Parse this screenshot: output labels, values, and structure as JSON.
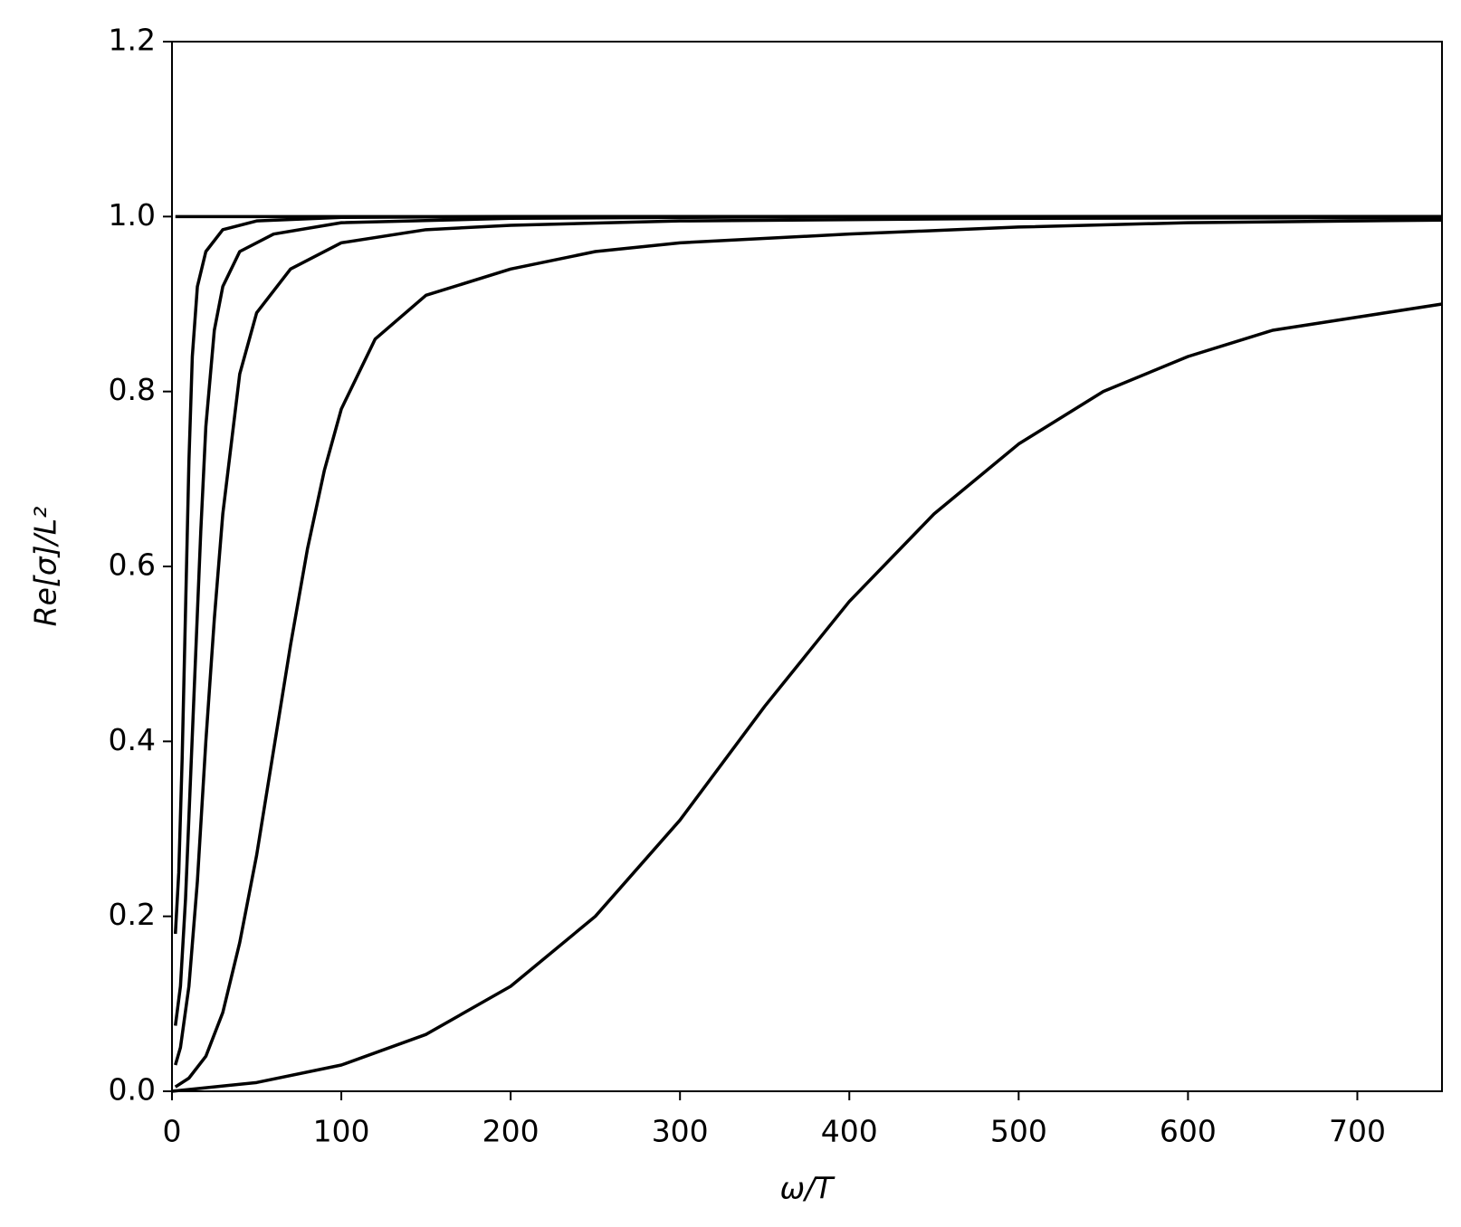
{
  "chart_data": {
    "type": "line",
    "xlabel": "ω/T",
    "ylabel": "Re[σ]/L²",
    "xlim": [
      0,
      750
    ],
    "xticks": [
      0,
      100,
      200,
      300,
      400,
      500,
      600,
      700
    ],
    "ylim": [
      0,
      1.2
    ],
    "yticks": [
      {
        "value": 0,
        "label": "0.0"
      },
      0.2,
      0.4,
      0.6,
      0.8,
      {
        "value": 1,
        "label": "1.0"
      },
      1.2
    ],
    "grid": false,
    "series": [
      {
        "color": "#000000",
        "x": [
          2,
          750
        ],
        "values": [
          1,
          1
        ]
      },
      {
        "color": "#000000",
        "x": [
          2,
          4,
          6,
          8,
          10,
          12,
          15,
          20,
          30,
          50,
          100,
          200,
          400,
          750
        ],
        "values": [
          0.18,
          0.25,
          0.38,
          0.55,
          0.72,
          0.84,
          0.92,
          0.96,
          0.985,
          0.995,
          0.999,
          1,
          1,
          1
        ]
      },
      {
        "color": "#000000",
        "x": [
          2,
          5,
          8,
          11,
          14,
          17,
          20,
          25,
          30,
          40,
          60,
          100,
          200,
          400,
          750
        ],
        "values": [
          0.075,
          0.12,
          0.22,
          0.36,
          0.5,
          0.64,
          0.76,
          0.87,
          0.92,
          0.96,
          0.98,
          0.993,
          0.998,
          1,
          1
        ]
      },
      {
        "color": "#000000",
        "x": [
          2,
          5,
          10,
          15,
          20,
          25,
          30,
          40,
          50,
          70,
          100,
          150,
          200,
          300,
          500,
          750
        ],
        "values": [
          0.03,
          0.05,
          0.12,
          0.24,
          0.4,
          0.54,
          0.66,
          0.82,
          0.89,
          0.94,
          0.97,
          0.985,
          0.99,
          0.995,
          0.998,
          0.999
        ]
      },
      {
        "color": "#000000",
        "x": [
          2,
          10,
          20,
          30,
          40,
          50,
          60,
          70,
          80,
          90,
          100,
          120,
          150,
          200,
          250,
          300,
          400,
          500,
          600,
          750
        ],
        "values": [
          0.005,
          0.015,
          0.04,
          0.09,
          0.17,
          0.27,
          0.39,
          0.51,
          0.62,
          0.71,
          0.78,
          0.86,
          0.91,
          0.94,
          0.96,
          0.97,
          0.98,
          0.988,
          0.993,
          0.996
        ]
      },
      {
        "color": "#000000",
        "x": [
          0,
          50,
          100,
          150,
          200,
          250,
          300,
          350,
          400,
          450,
          500,
          550,
          600,
          650,
          700,
          750
        ],
        "values": [
          0,
          0.01,
          0.03,
          0.065,
          0.12,
          0.2,
          0.31,
          0.44,
          0.56,
          0.66,
          0.74,
          0.8,
          0.84,
          0.87,
          0.885,
          0.9
        ]
      }
    ]
  }
}
